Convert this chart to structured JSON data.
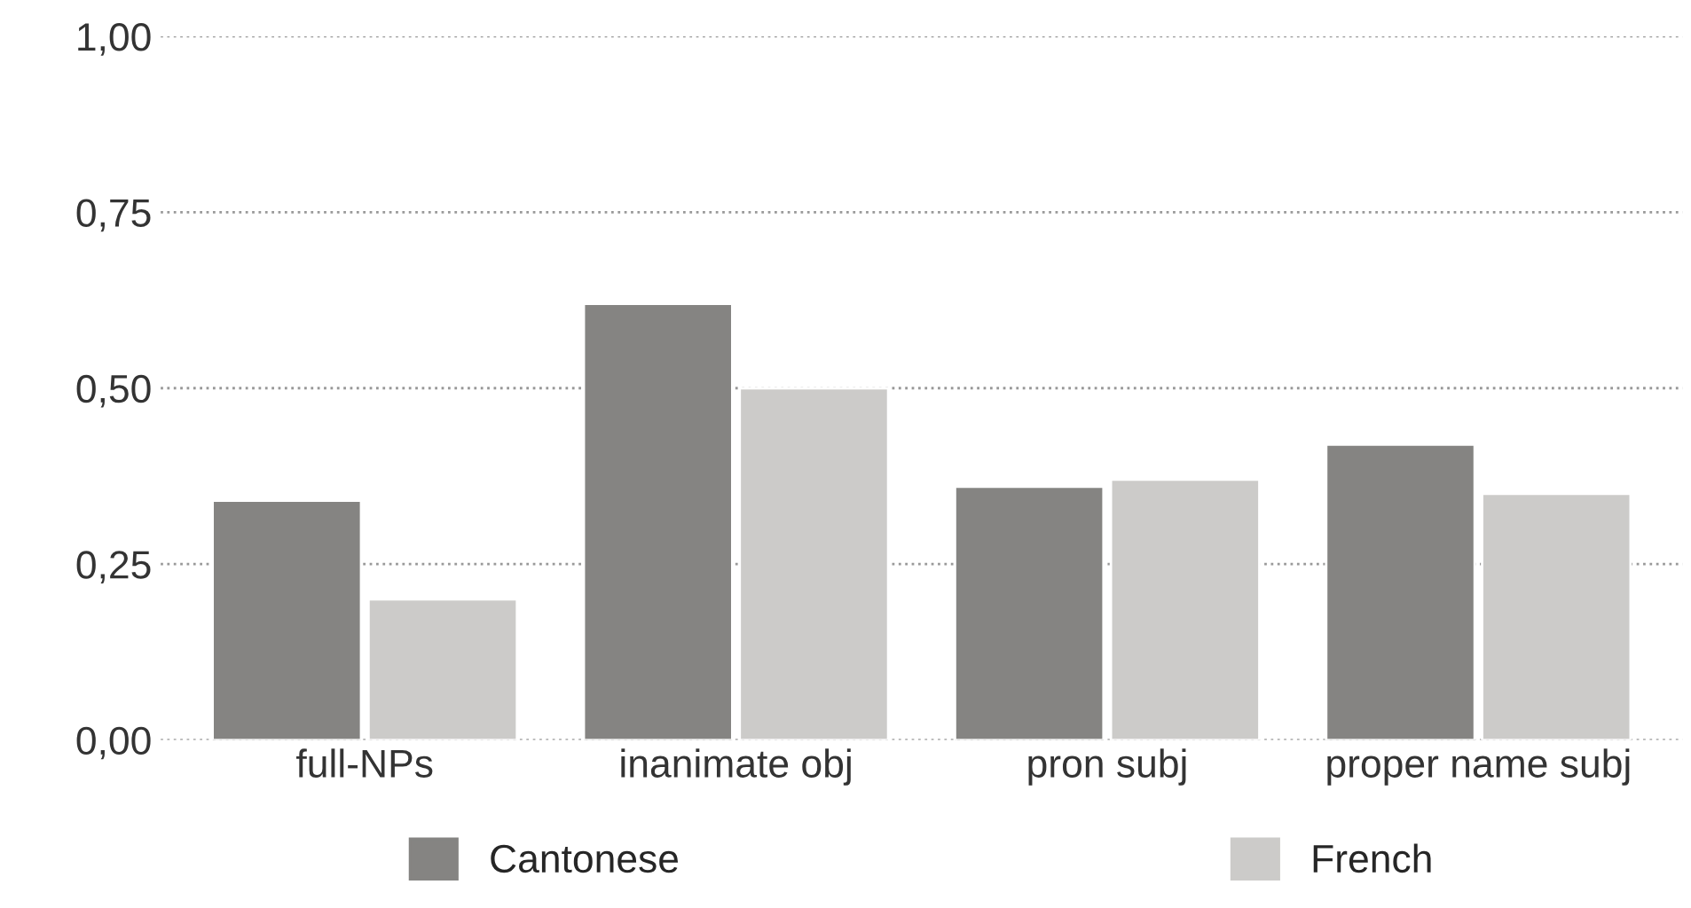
{
  "chart_data": {
    "type": "bar",
    "categories": [
      "full-NPs",
      "inanimate obj",
      "pron subj",
      "proper name subj"
    ],
    "series": [
      {
        "name": "Cantonese",
        "color": "#858482",
        "values": [
          0.34,
          0.62,
          0.36,
          0.42
        ]
      },
      {
        "name": "French",
        "color": "#cccbc9",
        "values": [
          0.2,
          0.5,
          0.37,
          0.35
        ]
      }
    ],
    "ylim": [
      0,
      1
    ],
    "yticks": [
      {
        "value": 0,
        "label": "0,00"
      },
      {
        "value": 0.25,
        "label": "0,25"
      },
      {
        "value": 0.5,
        "label": "0,50"
      },
      {
        "value": 0.75,
        "label": "0,75"
      },
      {
        "value": 1,
        "label": "1,00"
      }
    ],
    "grid": "y",
    "line_style": "dotted",
    "legend": "bottom"
  }
}
